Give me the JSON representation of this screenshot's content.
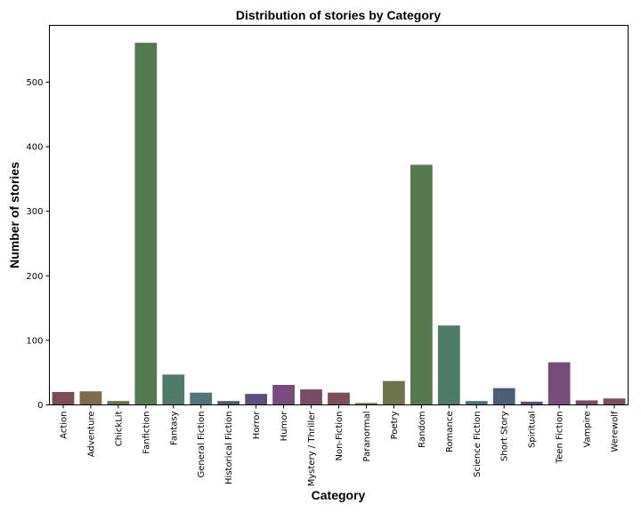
{
  "chart_data": {
    "type": "bar",
    "title": "Distribution of stories by Category",
    "xlabel": "Category",
    "ylabel": "Number of stories",
    "ylim": [
      0,
      588
    ],
    "yticks": [
      0,
      100,
      200,
      300,
      400,
      500
    ],
    "grid": false,
    "categories": [
      "Action",
      "Adventure",
      "ChickLit",
      "Fanfiction",
      "Fantasy",
      "General Fiction",
      "Historical Fiction",
      "Horror",
      "Humor",
      "Mystery / Thriller",
      "Non-Fiction",
      "Paranormal",
      "Poetry",
      "Random",
      "Romance",
      "Science Fiction",
      "Short Story",
      "Spiritual",
      "Teen Fiction",
      "Vampire",
      "Werewolf"
    ],
    "values": [
      20,
      21,
      6,
      561,
      47,
      19,
      6,
      17,
      31,
      24,
      19,
      3,
      37,
      372,
      123,
      6,
      26,
      5,
      66,
      7,
      10
    ],
    "colors": [
      "#7e4c55",
      "#7f6c4a",
      "#6f7148",
      "#527a4f",
      "#4f7b6b",
      "#4f7579",
      "#4c5d76",
      "#5a4f7e",
      "#764c7d",
      "#7c4c66",
      "#7e4d55",
      "#7f6e4a",
      "#6e744a",
      "#547a4e",
      "#4e7b67",
      "#4f7479",
      "#4c5f79",
      "#5c4f80",
      "#774c7c",
      "#7c4c67",
      "#7e4d55"
    ]
  }
}
